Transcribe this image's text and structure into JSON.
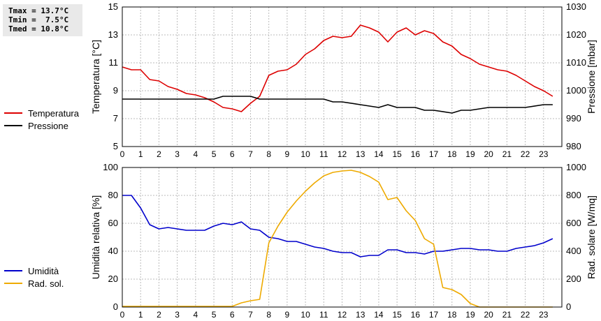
{
  "stats": {
    "tmax": "Tmax = 13.7°C",
    "tmin": "Tmin =  7.5°C",
    "tmed": "Tmed = 10.8°C"
  },
  "legend_top": {
    "temperatura": "Temperatura",
    "pressione": "Pressione"
  },
  "legend_bottom": {
    "umidita": "Umidità",
    "rad_sol": "Rad. sol."
  },
  "colors": {
    "temperatura": "#dd0000",
    "pressione": "#000000",
    "umidita": "#0000cc",
    "rad_sol": "#eeaa00",
    "grid": "#bbbbbb"
  },
  "chart_data": [
    {
      "type": "line",
      "xlim": [
        0,
        24
      ],
      "x_ticks": [
        "0",
        "1",
        "2",
        "3",
        "4",
        "5",
        "6",
        "7",
        "8",
        "9",
        "10",
        "11",
        "12",
        "13",
        "14",
        "15",
        "16",
        "17",
        "18",
        "19",
        "20",
        "21",
        "22",
        "23"
      ],
      "ylabel": "Temperatura [°C]",
      "ylim": [
        5,
        15
      ],
      "y_ticks": [
        "5",
        "7",
        "9",
        "11",
        "13",
        "15"
      ],
      "y2label": "Pressione [mbar]",
      "y2lim": [
        980,
        1030
      ],
      "y2_ticks": [
        "980",
        "990",
        "1000",
        "1010",
        "1020",
        "1030"
      ],
      "grid": true,
      "series": [
        {
          "name": "Temperatura",
          "axis": "left",
          "x": [
            0,
            0.5,
            1,
            1.5,
            2,
            2.5,
            3,
            3.5,
            4,
            4.5,
            5,
            5.5,
            6,
            6.5,
            7,
            7.5,
            8,
            8.5,
            9,
            9.5,
            10,
            10.5,
            11,
            11.5,
            12,
            12.5,
            13,
            13.5,
            14,
            14.5,
            15,
            15.5,
            16,
            16.5,
            17,
            17.5,
            18,
            18.5,
            19,
            19.5,
            20,
            20.5,
            21,
            21.5,
            22,
            22.5,
            23,
            23.5
          ],
          "values": [
            10.7,
            10.5,
            10.5,
            9.8,
            9.7,
            9.3,
            9.1,
            8.8,
            8.7,
            8.5,
            8.2,
            7.8,
            7.7,
            7.5,
            8.1,
            8.6,
            10.1,
            10.4,
            10.5,
            10.9,
            11.6,
            12.0,
            12.6,
            12.9,
            12.8,
            12.9,
            13.7,
            13.5,
            13.2,
            12.5,
            13.2,
            13.5,
            13.0,
            13.3,
            13.1,
            12.5,
            12.2,
            11.6,
            11.3,
            10.9,
            10.7,
            10.5,
            10.4,
            10.1,
            9.7,
            9.3,
            9.0,
            8.6
          ]
        },
        {
          "name": "Pressione",
          "axis": "right",
          "x": [
            0,
            1,
            2,
            3,
            4,
            5,
            5.5,
            6,
            7,
            7.5,
            8,
            9,
            10,
            11,
            11.5,
            12,
            13,
            14,
            14.5,
            15,
            16,
            16.5,
            17,
            18,
            18.5,
            19,
            20,
            21,
            22,
            23,
            23.5
          ],
          "values": [
            997,
            997,
            997,
            997,
            997,
            997,
            998,
            998,
            998,
            997,
            997,
            997,
            997,
            997,
            996,
            996,
            995,
            994,
            995,
            994,
            994,
            993,
            993,
            992,
            993,
            993,
            994,
            994,
            994,
            995,
            995
          ]
        }
      ]
    },
    {
      "type": "line",
      "xlim": [
        0,
        24
      ],
      "x_ticks": [
        "0",
        "1",
        "2",
        "3",
        "4",
        "5",
        "6",
        "7",
        "8",
        "9",
        "10",
        "11",
        "12",
        "13",
        "14",
        "15",
        "16",
        "17",
        "18",
        "19",
        "20",
        "21",
        "22",
        "23"
      ],
      "ylabel": "Umidità relativa [%]",
      "ylim": [
        0,
        100
      ],
      "y_ticks": [
        "0",
        "20",
        "40",
        "60",
        "80",
        "100"
      ],
      "y2label": "Rad. solare [W/mq]",
      "y2lim": [
        0,
        1000
      ],
      "y2_ticks": [
        "0",
        "200",
        "400",
        "600",
        "800",
        "1000"
      ],
      "grid": true,
      "series": [
        {
          "name": "Umidità",
          "axis": "left",
          "x": [
            0,
            0.5,
            1,
            1.5,
            2,
            2.5,
            3,
            3.5,
            4,
            4.5,
            5,
            5.5,
            6,
            6.5,
            7,
            7.5,
            8,
            8.5,
            9,
            9.5,
            10,
            10.5,
            11,
            11.5,
            12,
            12.5,
            13,
            13.5,
            14,
            14.5,
            15,
            15.5,
            16,
            16.5,
            17,
            17.5,
            18,
            18.5,
            19,
            19.5,
            20,
            20.5,
            21,
            21.5,
            22,
            22.5,
            23,
            23.5
          ],
          "values": [
            80,
            80,
            71,
            59,
            56,
            57,
            56,
            55,
            55,
            55,
            58,
            60,
            59,
            61,
            56,
            55,
            50,
            49,
            47,
            47,
            45,
            43,
            42,
            40,
            39,
            39,
            36,
            37,
            37,
            41,
            41,
            39,
            39,
            38,
            40,
            40,
            41,
            42,
            42,
            41,
            41,
            40,
            40,
            42,
            43,
            44,
            46,
            49
          ]
        },
        {
          "name": "Rad. sol.",
          "axis": "right",
          "x": [
            0,
            0.5,
            1,
            1.5,
            2,
            2.5,
            3,
            3.5,
            4,
            4.5,
            5,
            5.5,
            6,
            6.5,
            7,
            7.5,
            8,
            8.5,
            9,
            9.5,
            10,
            10.5,
            11,
            11.5,
            12,
            12.5,
            13,
            13.5,
            14,
            14.5,
            15,
            15.5,
            16,
            16.5,
            17,
            17.5,
            18,
            18.5,
            19,
            19.5,
            20,
            20.5,
            21,
            21.5,
            22,
            22.5,
            23,
            23.5
          ],
          "values": [
            5,
            5,
            5,
            5,
            5,
            5,
            5,
            5,
            5,
            5,
            5,
            5,
            5,
            30,
            45,
            55,
            460,
            580,
            680,
            760,
            830,
            890,
            940,
            965,
            975,
            980,
            965,
            935,
            895,
            770,
            785,
            690,
            620,
            490,
            450,
            140,
            125,
            90,
            25,
            0,
            0,
            0,
            0,
            0,
            0,
            0,
            0,
            0
          ]
        }
      ]
    }
  ]
}
